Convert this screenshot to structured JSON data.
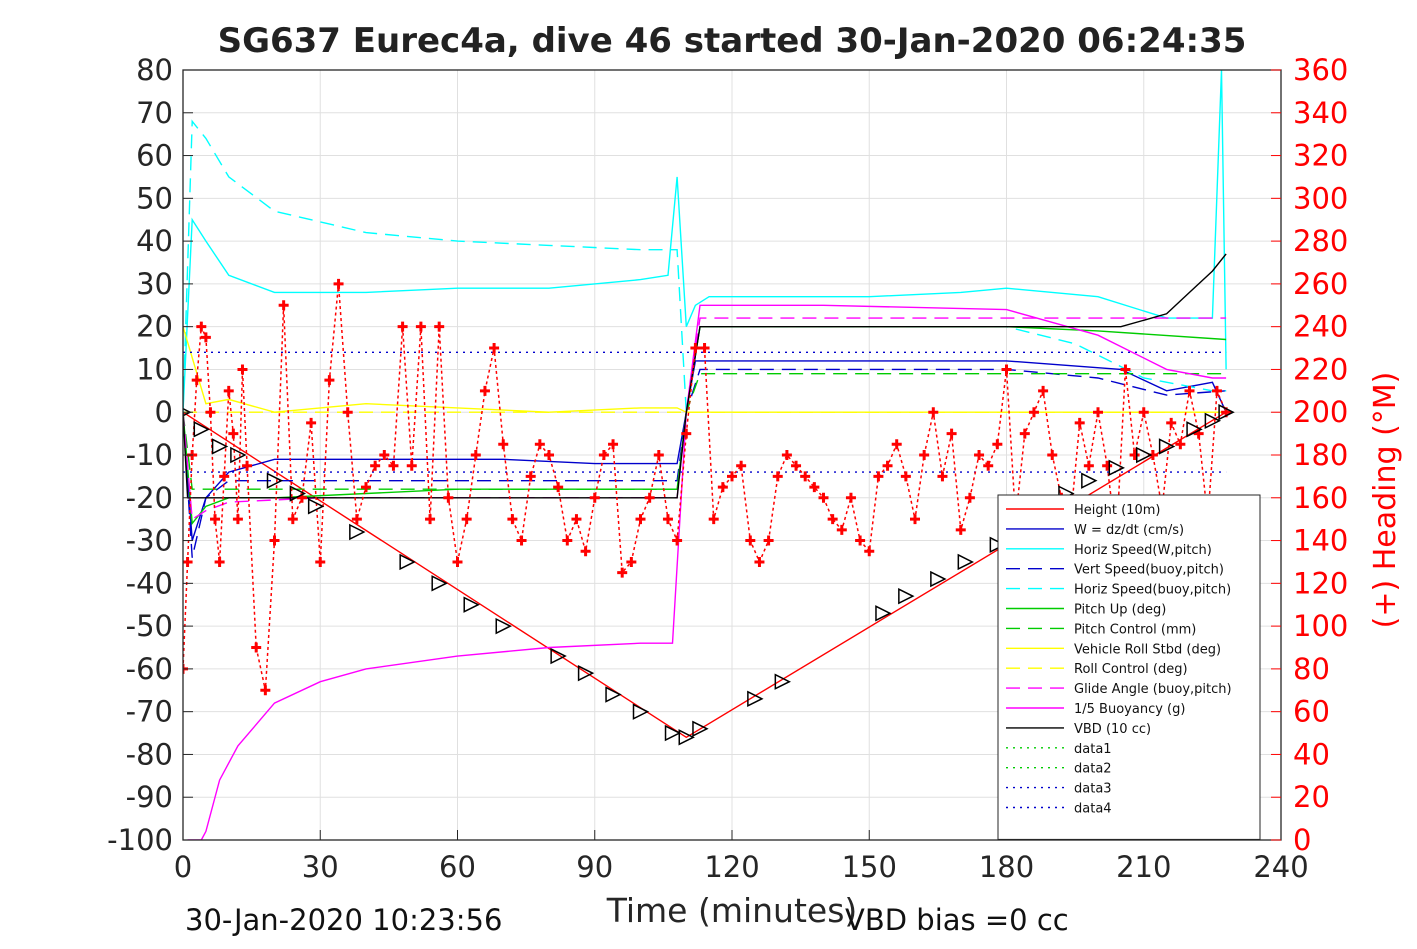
{
  "chart_data": {
    "type": "line",
    "title": "SG637 Eurec4a, dive 46 started 30-Jan-2020 06:24:35",
    "xlabel": "Time (minutes)",
    "ylabel_right": "(+) Heading (°M)",
    "footer_left": "30-Jan-2020 10:23:56",
    "footer_right": "VBD bias =0 cc",
    "xlim": [
      0,
      240
    ],
    "ylim": [
      -100,
      80
    ],
    "ylim_right": [
      0,
      360
    ],
    "x_ticks": [
      "0",
      "30",
      "60",
      "90",
      "120",
      "150",
      "180",
      "210",
      "240"
    ],
    "y_ticks": [
      "80",
      "70",
      "60",
      "50",
      "40",
      "30",
      "20",
      "10",
      "0",
      "-10",
      "-20",
      "-30",
      "-40",
      "-50",
      "-60",
      "-70",
      "-80",
      "-90",
      "-100"
    ],
    "y_ticks_right": [
      "360",
      "340",
      "320",
      "300",
      "280",
      "260",
      "240",
      "220",
      "200",
      "180",
      "160",
      "140",
      "120",
      "100",
      "80",
      "60",
      "40",
      "20",
      "0"
    ],
    "grid": true,
    "legend_position": "bottom-right",
    "colors": {
      "axis_right": "#ff0000",
      "red": "#ff0000",
      "blue": "#0000cc",
      "cyan": "#00ffff",
      "green": "#00cc00",
      "yellow": "#ffff00",
      "magenta": "#ff00ff",
      "black": "#000000"
    },
    "series": [
      {
        "name": "Height (10m)",
        "color": "#ff0000",
        "style": "solid",
        "x": [
          0,
          110,
          228
        ],
        "y": [
          0,
          -76,
          0
        ]
      },
      {
        "name": "W = dz/dt (cm/s)",
        "color": "#0000cc",
        "style": "solid",
        "x": [
          0,
          2,
          5,
          10,
          20,
          30,
          50,
          70,
          90,
          108,
          110,
          112,
          120,
          150,
          180,
          205,
          215,
          225,
          228
        ],
        "y": [
          0,
          -30,
          -20,
          -14,
          -11,
          -11,
          -11,
          -11,
          -12,
          -12,
          0,
          12,
          12,
          12,
          12,
          10,
          5,
          7,
          0
        ]
      },
      {
        "name": "Horiz Speed(W,pitch)",
        "color": "#00ffff",
        "style": "solid",
        "x": [
          0,
          2,
          5,
          10,
          20,
          40,
          60,
          80,
          100,
          106,
          108,
          110,
          112,
          115,
          130,
          150,
          170,
          180,
          200,
          215,
          225,
          227,
          228
        ],
        "y": [
          0,
          45,
          40,
          32,
          28,
          28,
          29,
          29,
          31,
          32,
          55,
          20,
          25,
          27,
          27,
          27,
          28,
          29,
          27,
          22,
          22,
          80,
          10
        ]
      },
      {
        "name": "Vert Speed(buoy,pitch)",
        "color": "#0000cc",
        "style": "dashed",
        "x": [
          0,
          2,
          5,
          10,
          30,
          60,
          90,
          108,
          110,
          113,
          140,
          180,
          200,
          215,
          228
        ],
        "y": [
          0,
          -34,
          -20,
          -16,
          -16,
          -16,
          -16,
          -16,
          0,
          10,
          10,
          10,
          8,
          4,
          5
        ]
      },
      {
        "name": "Horiz Speed(buoy,pitch)",
        "color": "#00ffff",
        "style": "dashed",
        "x": [
          0,
          2,
          5,
          10,
          20,
          40,
          60,
          80,
          100,
          108,
          110,
          113,
          140,
          180,
          195,
          210,
          225,
          228
        ],
        "y": [
          0,
          68,
          64,
          55,
          47,
          42,
          40,
          39,
          38,
          38,
          0,
          20,
          20,
          20,
          16,
          8,
          5,
          5
        ]
      },
      {
        "name": "Pitch Up (deg)",
        "color": "#00cc00",
        "style": "solid",
        "x": [
          0,
          2,
          5,
          10,
          20,
          40,
          60,
          80,
          100,
          108,
          110,
          113,
          140,
          180,
          200,
          228
        ],
        "y": [
          0,
          -26,
          -22,
          -20,
          -20,
          -19,
          -18,
          -18,
          -18,
          -18,
          0,
          20,
          20,
          20,
          19,
          17
        ]
      },
      {
        "name": "Pitch Control (mm)",
        "color": "#00cc00",
        "style": "dashed",
        "x": [
          0,
          2,
          10,
          40,
          108,
          110,
          113,
          180,
          228
        ],
        "y": [
          0,
          -18,
          -18,
          -18,
          -18,
          0,
          9,
          9,
          9
        ]
      },
      {
        "name": "Vehicle Roll Stbd (deg)",
        "color": "#ffff00",
        "style": "solid",
        "x": [
          0,
          5,
          10,
          20,
          40,
          60,
          80,
          100,
          108,
          110,
          113,
          140,
          180,
          200,
          228
        ],
        "y": [
          20,
          2,
          3,
          0,
          2,
          1,
          0,
          1,
          1,
          0,
          0,
          0,
          0,
          0,
          0
        ]
      },
      {
        "name": "Roll Control (deg)",
        "color": "#ffff00",
        "style": "dashed",
        "x": [
          0,
          228
        ],
        "y": [
          0,
          0
        ]
      },
      {
        "name": "Glide Angle (buoy,pitch)",
        "color": "#ff00ff",
        "style": "dashed",
        "x": [
          0,
          2,
          5,
          10,
          30,
          60,
          90,
          108,
          110,
          113,
          140,
          180,
          228
        ],
        "y": [
          0,
          -25,
          -23,
          -21,
          -20,
          -20,
          -20,
          -20,
          0,
          22,
          22,
          22,
          22
        ]
      },
      {
        "name": "1/5 Buoyancy (g)",
        "color": "#ff00ff",
        "style": "solid",
        "x": [
          1,
          4,
          5,
          8,
          12,
          20,
          30,
          40,
          60,
          80,
          100,
          107,
          110,
          113,
          140,
          180,
          200,
          215,
          225,
          228
        ],
        "y": [
          -100,
          -100,
          -98,
          -86,
          -78,
          -68,
          -63,
          -60,
          -57,
          -55,
          -54,
          -54,
          0,
          25,
          25,
          24,
          18,
          10,
          8,
          8
        ]
      },
      {
        "name": "VBD (10 cc)",
        "color": "#000000",
        "style": "solid",
        "x": [
          0,
          1,
          2,
          108,
          110,
          113,
          180,
          205,
          215,
          220,
          225,
          228
        ],
        "y": [
          0,
          -20,
          -20,
          -20,
          0,
          20,
          20,
          20,
          23,
          28,
          33,
          37
        ]
      },
      {
        "name": "data1",
        "color": "#00cc00",
        "style": "dotted",
        "x": [
          0,
          0
        ],
        "y": [
          0,
          0
        ]
      },
      {
        "name": "data2",
        "color": "#00cc00",
        "style": "dotted",
        "x": [
          0,
          0
        ],
        "y": [
          0,
          0
        ]
      },
      {
        "name": "data3",
        "color": "#0000cc",
        "style": "dotted",
        "x": [
          0,
          228
        ],
        "y": [
          14,
          14
        ]
      },
      {
        "name": "data4",
        "color": "#0000cc",
        "style": "dotted",
        "x": [
          0,
          228
        ],
        "y": [
          -14,
          -14
        ]
      }
    ],
    "heading": {
      "color": "#ff0000",
      "marker": "+",
      "x": [
        0,
        1,
        2,
        3,
        4,
        5,
        6,
        7,
        8,
        9,
        10,
        11,
        12,
        13,
        14,
        16,
        18,
        20,
        22,
        24,
        26,
        28,
        30,
        32,
        34,
        36,
        38,
        40,
        42,
        44,
        46,
        48,
        50,
        52,
        54,
        56,
        58,
        60,
        62,
        64,
        66,
        68,
        70,
        72,
        74,
        76,
        78,
        80,
        82,
        84,
        86,
        88,
        90,
        92,
        94,
        96,
        98,
        100,
        102,
        104,
        106,
        108,
        110,
        112,
        114,
        116,
        118,
        120,
        122,
        124,
        126,
        128,
        130,
        132,
        134,
        136,
        138,
        140,
        142,
        144,
        146,
        148,
        150,
        152,
        154,
        156,
        158,
        160,
        162,
        164,
        166,
        168,
        170,
        172,
        174,
        176,
        178,
        180,
        182,
        184,
        186,
        188,
        190,
        192,
        194,
        196,
        198,
        200,
        202,
        204,
        206,
        208,
        210,
        212,
        214,
        216,
        218,
        220,
        222,
        224,
        226,
        228
      ],
      "y": [
        80,
        130,
        180,
        215,
        240,
        235,
        200,
        150,
        130,
        170,
        210,
        190,
        150,
        220,
        175,
        90,
        70,
        140,
        250,
        150,
        160,
        195,
        130,
        215,
        260,
        200,
        150,
        165,
        175,
        180,
        175,
        240,
        175,
        240,
        150,
        240,
        160,
        130,
        150,
        180,
        210,
        230,
        185,
        150,
        140,
        170,
        185,
        180,
        165,
        140,
        150,
        135,
        160,
        180,
        185,
        125,
        130,
        150,
        160,
        180,
        150,
        140,
        190,
        230,
        230,
        150,
        165,
        170,
        175,
        140,
        130,
        140,
        170,
        180,
        175,
        170,
        165,
        160,
        150,
        145,
        160,
        140,
        135,
        170,
        175,
        185,
        170,
        150,
        180,
        200,
        170,
        190,
        145,
        160,
        180,
        175,
        185,
        220,
        150,
        190,
        200,
        210,
        180,
        160,
        150,
        195,
        175,
        200,
        175,
        140,
        220,
        180,
        200,
        180,
        155,
        195,
        185,
        210,
        190,
        150,
        210,
        200
      ]
    },
    "triangles": {
      "x": [
        0,
        4,
        8,
        12,
        20,
        25,
        29,
        38,
        49,
        56,
        63,
        70,
        82,
        88,
        94,
        100,
        107,
        110,
        113,
        125,
        131,
        153,
        158,
        165,
        171,
        178,
        193,
        198,
        204,
        210,
        215,
        221,
        225,
        228
      ],
      "y": [
        0,
        -4,
        -8,
        -10,
        -16,
        -19,
        -22,
        -28,
        -35,
        -40,
        -45,
        -50,
        -57,
        -61,
        -66,
        -70,
        -75,
        -76,
        -74,
        -67,
        -63,
        -47,
        -43,
        -39,
        -35,
        -31,
        -19,
        -16,
        -13,
        -10,
        -8,
        -4,
        -2,
        0
      ]
    }
  }
}
